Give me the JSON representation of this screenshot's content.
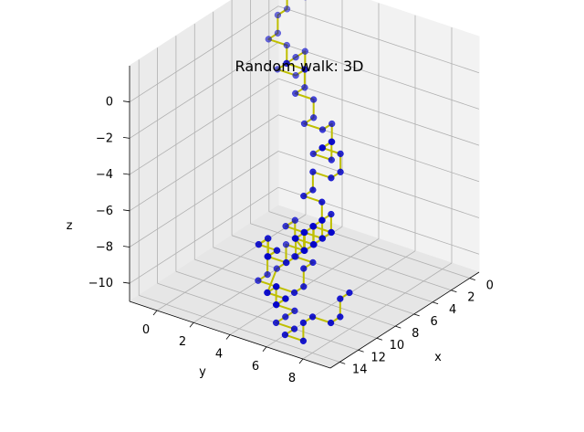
{
  "chart_data": {
    "type": "line",
    "projection": "3d",
    "title": "Random walk: 3D",
    "xlabel": "x",
    "ylabel": "y",
    "zlabel": "z",
    "xlim": [
      -1,
      15
    ],
    "ylim": [
      -1.5,
      9.5
    ],
    "zlim": [
      -11,
      2
    ],
    "x_ticks": [
      0,
      2,
      4,
      6,
      8,
      10,
      12,
      14
    ],
    "y_ticks": [
      0,
      2,
      4,
      6,
      8
    ],
    "z_ticks": [
      0,
      -2,
      -4,
      -6,
      -8,
      -10
    ],
    "x_tick_labels": [
      "0",
      "2",
      "4",
      "6",
      "8",
      "10",
      "12",
      "14"
    ],
    "y_tick_labels": [
      "0",
      "2",
      "4",
      "6",
      "8"
    ],
    "z_tick_labels": [
      "0",
      "−2",
      "−4",
      "−6",
      "−8",
      "−10"
    ],
    "grid": true,
    "series": [
      {
        "line_color": "#bfbf00",
        "marker_color": "#0000cc",
        "points": [
          [
            1,
            1,
            2
          ],
          [
            1,
            0,
            2
          ],
          [
            1,
            0,
            1
          ],
          [
            2,
            0,
            1
          ],
          [
            2,
            0,
            0
          ],
          [
            3,
            0,
            0
          ],
          [
            3,
            1,
            0
          ],
          [
            3,
            1,
            -1
          ],
          [
            4,
            1,
            -1
          ],
          [
            4,
            2,
            -1
          ],
          [
            3,
            2,
            -1
          ],
          [
            3,
            2,
            0
          ],
          [
            4,
            2,
            0
          ],
          [
            5,
            2,
            0
          ],
          [
            5,
            3,
            0
          ],
          [
            5,
            3,
            -1
          ],
          [
            6,
            3,
            -1
          ],
          [
            6,
            4,
            -1
          ],
          [
            6,
            4,
            -2
          ],
          [
            7,
            4,
            -2
          ],
          [
            7,
            5,
            -2
          ],
          [
            6,
            5,
            -2
          ],
          [
            6,
            5,
            -3
          ],
          [
            7,
            5,
            -3
          ],
          [
            8,
            5,
            -3
          ],
          [
            8,
            6,
            -3
          ],
          [
            8,
            6,
            -2
          ],
          [
            9,
            6,
            -2
          ],
          [
            9,
            7,
            -2
          ],
          [
            9,
            7,
            -3
          ],
          [
            10,
            7,
            -3
          ],
          [
            10,
            6,
            -3
          ],
          [
            10,
            6,
            -4
          ],
          [
            11,
            6,
            -4
          ],
          [
            11,
            7,
            -4
          ],
          [
            11,
            7,
            -5
          ],
          [
            10,
            7,
            -5
          ],
          [
            10,
            7,
            -6
          ],
          [
            10,
            6,
            -6
          ],
          [
            9,
            6,
            -6
          ],
          [
            9,
            6,
            -7
          ],
          [
            8,
            6,
            -7
          ],
          [
            8,
            5,
            -7
          ],
          [
            8,
            5,
            -8
          ],
          [
            7,
            5,
            -8
          ],
          [
            7,
            4,
            -8
          ],
          [
            6,
            4,
            -8
          ],
          [
            6,
            4,
            -9
          ],
          [
            6,
            3,
            -9
          ],
          [
            5,
            3,
            -9
          ],
          [
            5,
            3,
            -10
          ],
          [
            4,
            3,
            -10
          ],
          [
            4,
            2,
            -10
          ],
          [
            4,
            2,
            -11
          ],
          [
            5,
            2,
            -11
          ],
          [
            5,
            1,
            -11
          ],
          [
            5,
            1,
            -10
          ],
          [
            6,
            1,
            -10
          ],
          [
            6,
            2,
            -10
          ],
          [
            7,
            2,
            -10
          ],
          [
            7,
            2,
            -9
          ],
          [
            8,
            2,
            -9
          ],
          [
            8,
            3,
            -9
          ],
          [
            9,
            3,
            -9
          ],
          [
            9,
            3,
            -10
          ],
          [
            10,
            3,
            -10
          ],
          [
            10,
            4,
            -10
          ],
          [
            11,
            4,
            -10
          ],
          [
            11,
            5,
            -10
          ],
          [
            12,
            5,
            -10
          ],
          [
            12,
            5,
            -9
          ],
          [
            12,
            6,
            -9
          ],
          [
            11,
            6,
            -9
          ],
          [
            11,
            6,
            -8
          ],
          [
            10,
            6,
            -8
          ],
          [
            10,
            5,
            -8
          ],
          [
            9,
            5,
            -8
          ],
          [
            9,
            5,
            -7
          ],
          [
            9,
            4,
            -7
          ],
          [
            8,
            4,
            -7
          ],
          [
            8,
            4,
            -8
          ],
          [
            7,
            4,
            -9
          ],
          [
            7,
            3,
            -9
          ],
          [
            7,
            3,
            -10
          ],
          [
            8,
            3,
            -10
          ],
          [
            9,
            3,
            -11
          ],
          [
            9,
            4,
            -11
          ],
          [
            10,
            4,
            -11
          ],
          [
            10,
            5,
            -11
          ],
          [
            11,
            5,
            -11
          ],
          [
            12,
            5,
            -11
          ],
          [
            12,
            6,
            -11
          ],
          [
            13,
            6,
            -11
          ],
          [
            13,
            7,
            -11
          ],
          [
            13,
            7,
            -10
          ],
          [
            12,
            7,
            -10
          ],
          [
            12,
            8,
            -10
          ],
          [
            11,
            8,
            -10
          ],
          [
            11,
            8,
            -9
          ],
          [
            10,
            8,
            -9
          ]
        ]
      }
    ]
  }
}
